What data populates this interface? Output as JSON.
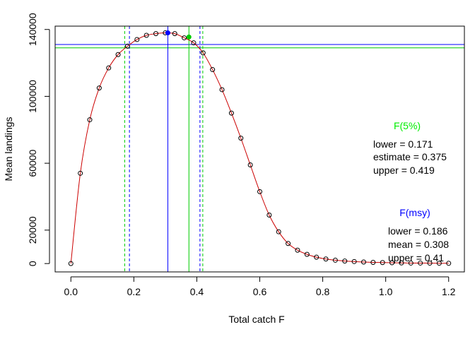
{
  "chart_data": {
    "type": "line",
    "xlabel": "Total catch F",
    "ylabel": "Mean landings",
    "xlim": [
      -0.05,
      1.25
    ],
    "ylim": [
      -5000,
      142000
    ],
    "x_ticks": [
      0.0,
      0.2,
      0.4,
      0.6,
      0.8,
      1.0,
      1.2
    ],
    "x_tick_labels": [
      "0.0",
      "0.2",
      "0.4",
      "0.6",
      "0.8",
      "1.0",
      "1.2"
    ],
    "y_ticks": [
      0,
      20000,
      60000,
      100000,
      140000
    ],
    "y_tick_labels": [
      "0",
      "20000",
      "60000",
      "100000",
      "140000"
    ],
    "grid": false,
    "colors": {
      "curve": "#cc0000",
      "points": "#000000",
      "msy": "#0000ff",
      "f5": "#00cc00"
    },
    "series": [
      {
        "marker": "open-circle",
        "x": [
          0.0,
          0.03,
          0.06,
          0.09,
          0.12,
          0.15,
          0.18,
          0.21,
          0.24,
          0.27,
          0.3,
          0.33,
          0.36,
          0.39,
          0.42,
          0.45,
          0.48,
          0.51,
          0.54,
          0.57,
          0.6,
          0.63,
          0.66,
          0.69,
          0.72,
          0.75,
          0.78,
          0.81,
          0.84,
          0.87,
          0.9,
          0.93,
          0.96,
          0.99,
          1.02,
          1.05,
          1.08,
          1.11,
          1.14,
          1.17,
          1.2
        ],
        "y": [
          0,
          54000,
          86000,
          105000,
          117000,
          125000,
          130000,
          134000,
          136500,
          137500,
          138000,
          137500,
          135000,
          132000,
          126000,
          116000,
          104000,
          90000,
          75000,
          59000,
          43000,
          29000,
          19000,
          12000,
          8000,
          5500,
          3800,
          2700,
          2000,
          1500,
          1200,
          900,
          700,
          600,
          500,
          400,
          300,
          300,
          250,
          200,
          150
        ]
      }
    ],
    "fmsy": {
      "title": "F(msy)",
      "lower": 0.186,
      "mean": 0.308,
      "upper": 0.41,
      "yield": 138000
    },
    "f5": {
      "title": "F(5%)",
      "lower": 0.171,
      "estimate": 0.375,
      "upper": 0.419,
      "yield": 135500
    },
    "hlines": [
      {
        "y": 131000,
        "color": "#0000ff"
      },
      {
        "y": 129000,
        "color": "#00cc00"
      }
    ],
    "annotations": {
      "fmsy_title": "F(msy)",
      "fmsy_lower": "lower = 0.186",
      "fmsy_mean": "mean = 0.308",
      "fmsy_upper": "upper = 0.41",
      "f5_title": "F(5%)",
      "f5_lower": "lower = 0.171",
      "f5_estimate": "estimate = 0.375",
      "f5_upper": "upper = 0.419"
    }
  }
}
